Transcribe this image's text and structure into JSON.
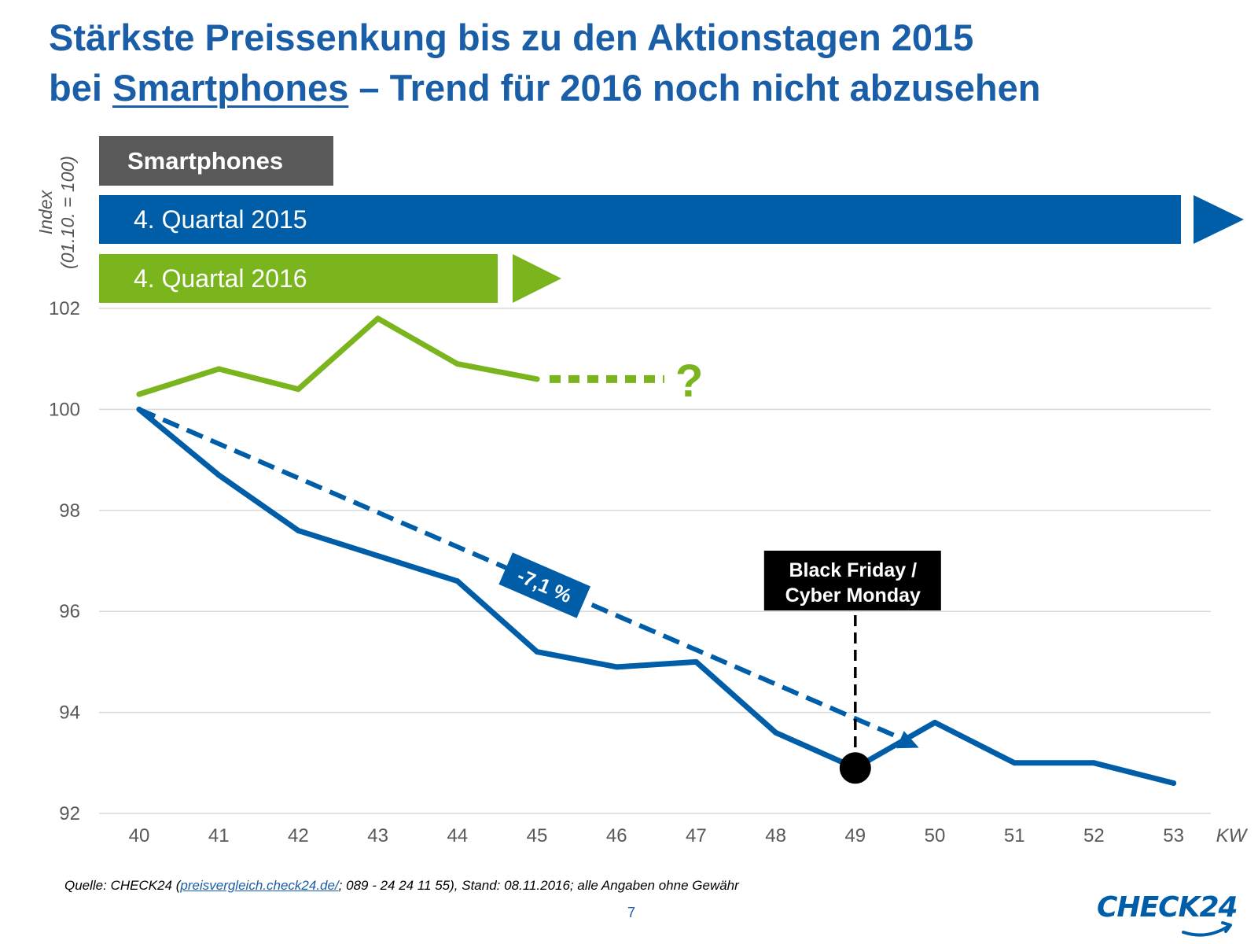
{
  "title": {
    "line1": "Stärkste Preissenkung bis zu den Aktionstagen 2015",
    "line2_prefix": "bei ",
    "line2_underlined": "Smartphones",
    "line2_suffix": " – Trend für 2016 noch nicht abzusehen"
  },
  "y_axis_title": {
    "line1": "Index",
    "line2": "(01.10. = 100)"
  },
  "legend": {
    "category": "Smartphones",
    "series_2015": "4. Quartal 2015",
    "series_2016": "4. Quartal 2016"
  },
  "colors": {
    "blue": "#005ea8",
    "green": "#7ab51d",
    "gray": "#595959",
    "title": "#1a5ea8"
  },
  "chart_data": {
    "type": "line",
    "title": "Smartphones",
    "xlabel": "KW",
    "ylabel": "Index (01.10. = 100)",
    "x": [
      40,
      41,
      42,
      43,
      44,
      45,
      46,
      47,
      48,
      49,
      50,
      51,
      52,
      53
    ],
    "x_tick_labels": [
      "40",
      "41",
      "42",
      "43",
      "44",
      "45",
      "46",
      "47",
      "48",
      "49",
      "50",
      "51",
      "52",
      "53"
    ],
    "y_ticks": [
      92,
      94,
      96,
      98,
      100,
      102
    ],
    "y_tick_labels": [
      "92",
      "94",
      "96",
      "98",
      "100",
      "102"
    ],
    "ylim": [
      92,
      102
    ],
    "grid": true,
    "series": [
      {
        "name": "4. Quartal 2015",
        "color": "#005ea8",
        "x": [
          40,
          41,
          42,
          43,
          44,
          45,
          46,
          47,
          48,
          49,
          50,
          51,
          52,
          53
        ],
        "values": [
          100.0,
          98.7,
          97.6,
          97.1,
          96.6,
          95.2,
          94.9,
          95.0,
          93.6,
          92.9,
          93.8,
          93.0,
          93.0,
          92.6
        ]
      },
      {
        "name": "4. Quartal 2016",
        "color": "#7ab51d",
        "x": [
          40,
          41,
          42,
          43,
          44,
          45
        ],
        "values": [
          100.3,
          100.8,
          100.4,
          101.8,
          100.9,
          100.6
        ]
      }
    ],
    "annotations": {
      "trend": {
        "label": "-7,1 %",
        "from": [
          40,
          100.0
        ],
        "to": [
          49.8,
          93.3
        ]
      },
      "projection_2016": {
        "label": "?",
        "from": [
          45,
          100.6
        ],
        "to": [
          46.6,
          100.6
        ]
      },
      "event": {
        "label_line1": "Black Friday /",
        "label_line2": "Cyber Monday",
        "x": 49,
        "y": 92.9
      }
    }
  },
  "footer": {
    "source_prefix": "Quelle: CHECK24 (",
    "source_link": "preisvergleich.check24.de/",
    "source_suffix": "; 089 - 24 24 11 55), Stand: 08.11.2016; alle Angaben ohne Gewähr",
    "page_number": "7",
    "logo": "CHECK24"
  }
}
